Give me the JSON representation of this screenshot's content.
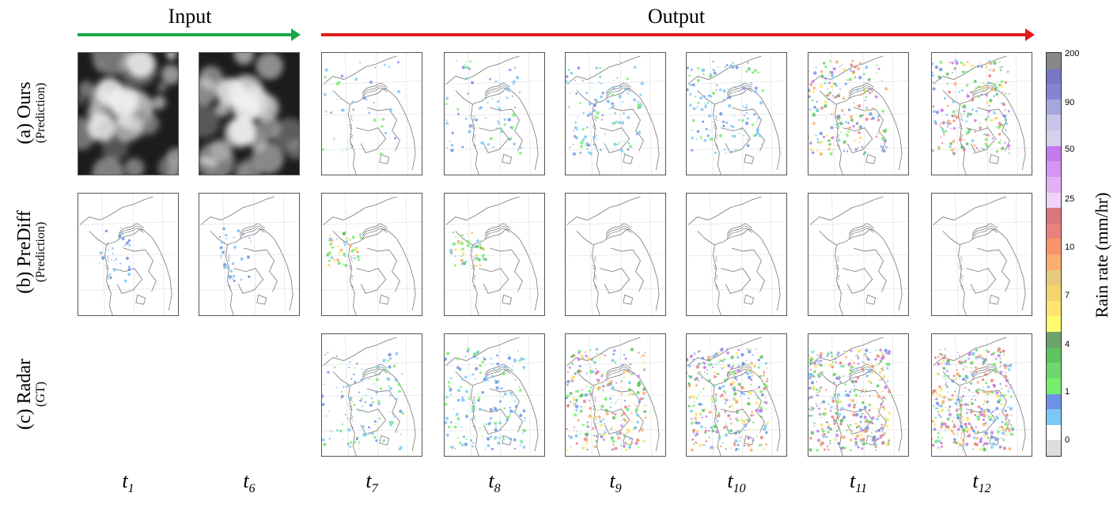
{
  "headers": {
    "input": "Input",
    "output": "Output"
  },
  "colors": {
    "input_arrow": "#1aa84a",
    "output_arrow": "#e21b1b"
  },
  "rows": [
    {
      "main": "(a) Ours",
      "sub": "(Prediction)"
    },
    {
      "main": "(b) PreDiff",
      "sub": "(Prediction)"
    },
    {
      "main": "(c) Radar",
      "sub": "(GT)"
    }
  ],
  "time_labels": [
    {
      "t": "t",
      "sub": "1"
    },
    {
      "t": "t",
      "sub": "6"
    },
    {
      "t": "t",
      "sub": "7"
    },
    {
      "t": "t",
      "sub": "8"
    },
    {
      "t": "t",
      "sub": "9"
    },
    {
      "t": "t",
      "sub": "10"
    },
    {
      "t": "t",
      "sub": "11"
    },
    {
      "t": "t",
      "sub": "12"
    }
  ],
  "colorbar": {
    "title": "Rain rate (mm/hr)",
    "ticks": [
      "200",
      "90",
      "50",
      "25",
      "10",
      "7",
      "4",
      "1",
      "0"
    ],
    "colors": [
      "#dddddd",
      "#ffffff",
      "#7cc8f5",
      "#6d93e8",
      "#76ee6e",
      "#6ed66e",
      "#5fc35f",
      "#6ea36e",
      "#fffd6e",
      "#fde56e",
      "#f3d46e",
      "#e6c97a",
      "#fcae6e",
      "#f8936e",
      "#e9817e",
      "#d9777e",
      "#eed4f7",
      "#e4b0f5",
      "#d595f3",
      "#c47aed",
      "#d7d0ea",
      "#c6c4e8",
      "#a6a6de",
      "#8385d2",
      "#7777c4",
      "#888888"
    ]
  }
}
